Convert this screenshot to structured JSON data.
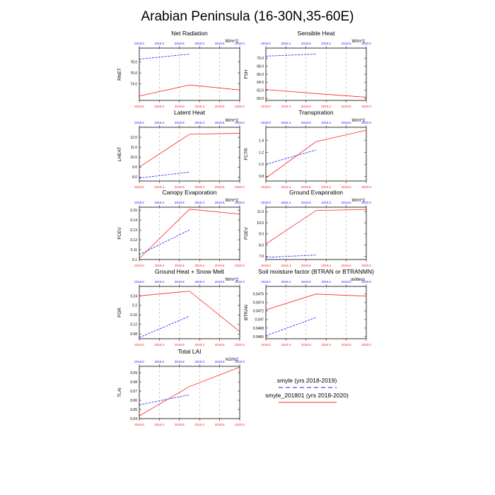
{
  "title": "Arabian Peninsula (16-30N,35-60E)",
  "legend": [
    {
      "label": "smyle (yrs 2018-2019)",
      "color": "#1a1aff",
      "dash": "6,4"
    },
    {
      "label": "smyle_201801 (yrs 2018-2020)",
      "color": "#ff2020",
      "dash": ""
    }
  ],
  "chart_data": [
    {
      "type": "line",
      "title": "Net Radiation",
      "units": "W/m^2",
      "ylabel": "RNET",
      "xlim": [
        2018.0,
        2020.0
      ],
      "ylim": [
        71,
        80.5
      ],
      "yticks": [
        74.0,
        76.0,
        78.0
      ],
      "xticks": [
        "2018.0",
        "2018.4",
        "2018.8",
        "2019.2",
        "2019.6",
        "2020.0"
      ],
      "series": [
        {
          "x": [
            2018.0,
            2019.0
          ],
          "y": [
            78.5,
            79.4
          ]
        },
        {
          "x": [
            2018.0,
            2019.0,
            2020.0
          ],
          "y": [
            71.8,
            73.8,
            72.9
          ]
        }
      ]
    },
    {
      "type": "line",
      "title": "Sensible Heat",
      "units": "W/m^2",
      "ylabel": "FSH",
      "xlim": [
        2018.0,
        2020.0
      ],
      "ylim": [
        59.5,
        72.5
      ],
      "yticks": [
        60.0,
        62.0,
        64.0,
        66.0,
        68.0,
        70.0
      ],
      "xticks": [
        "2018.0",
        "2018.4",
        "2018.8",
        "2019.2",
        "2019.6",
        "2020.0"
      ],
      "series": [
        {
          "x": [
            2018.0,
            2019.0
          ],
          "y": [
            70.5,
            71.0
          ]
        },
        {
          "x": [
            2018.0,
            2019.0,
            2020.0
          ],
          "y": [
            62.2,
            61.2,
            60.3
          ]
        }
      ]
    },
    {
      "type": "line",
      "title": "Latent Heat",
      "units": "W/m^2",
      "ylabel": "LHEAT",
      "xlim": [
        2018.0,
        2020.0
      ],
      "ylim": [
        7.6,
        13.0
      ],
      "yticks": [
        8.0,
        9.0,
        10.0,
        11.0,
        12.0
      ],
      "xticks": [
        "2018.0",
        "2018.4",
        "2018.8",
        "2019.2",
        "2019.6",
        "2020.0"
      ],
      "series": [
        {
          "x": [
            2018.0,
            2019.0
          ],
          "y": [
            7.9,
            8.5
          ]
        },
        {
          "x": [
            2018.0,
            2019.0,
            2020.0
          ],
          "y": [
            9.0,
            12.3,
            12.4
          ]
        }
      ]
    },
    {
      "type": "line",
      "title": "Transpiration",
      "units": "W/m^2",
      "ylabel": "FCTR",
      "xlim": [
        2018.0,
        2020.0
      ],
      "ylim": [
        0.72,
        1.62
      ],
      "yticks": [
        0.8,
        1.0,
        1.2,
        1.4
      ],
      "xticks": [
        "2018.0",
        "2018.4",
        "2018.8",
        "2019.2",
        "2019.6",
        "2020.0"
      ],
      "series": [
        {
          "x": [
            2018.0,
            2019.0
          ],
          "y": [
            1.0,
            1.24
          ]
        },
        {
          "x": [
            2018.0,
            2019.0,
            2020.0
          ],
          "y": [
            0.77,
            1.38,
            1.57
          ]
        }
      ]
    },
    {
      "type": "line",
      "title": "Canopy Evaporation",
      "units": "W/m^2",
      "ylabel": "FCEV",
      "xlim": [
        2018.0,
        2020.0
      ],
      "ylim": [
        0.1,
        0.153
      ],
      "yticks": [
        0.1,
        0.11,
        0.12,
        0.13,
        0.14,
        0.15
      ],
      "xticks": [
        "2018.0",
        "2018.4",
        "2018.8",
        "2019.2",
        "2019.6",
        "2020.0"
      ],
      "series": [
        {
          "x": [
            2018.0,
            2019.0
          ],
          "y": [
            0.105,
            0.13
          ]
        },
        {
          "x": [
            2018.0,
            2019.0,
            2020.0
          ],
          "y": [
            0.101,
            0.151,
            0.146
          ]
        }
      ]
    },
    {
      "type": "line",
      "title": "Ground Evaporation",
      "units": "W/m^2",
      "ylabel": "FGEV",
      "xlim": [
        2018.0,
        2020.0
      ],
      "ylim": [
        6.7,
        11.4
      ],
      "yticks": [
        7.0,
        8.0,
        9.0,
        10.0,
        11.0
      ],
      "xticks": [
        "2018.0",
        "2018.4",
        "2018.8",
        "2019.2",
        "2019.6",
        "2020.0"
      ],
      "series": [
        {
          "x": [
            2018.0,
            2019.0
          ],
          "y": [
            6.9,
            7.1
          ]
        },
        {
          "x": [
            2018.0,
            2019.0,
            2020.0
          ],
          "y": [
            8.1,
            11.1,
            11.2
          ]
        }
      ]
    },
    {
      "type": "line",
      "title": "Ground Heat + Snow Melt",
      "units": "W/m^2",
      "ylabel": "FGR",
      "xlim": [
        2018.0,
        2020.0
      ],
      "ylim": [
        0.06,
        0.28
      ],
      "yticks": [
        0.08,
        0.12,
        0.16,
        0.2,
        0.24
      ],
      "xticks": [
        "2018.0",
        "2018.4",
        "2018.8",
        "2019.2",
        "2019.6",
        "2020.0"
      ],
      "series": [
        {
          "x": [
            2018.0,
            2019.0
          ],
          "y": [
            0.065,
            0.155
          ]
        },
        {
          "x": [
            2018.0,
            2019.0,
            2020.0
          ],
          "y": [
            0.24,
            0.26,
            0.09
          ]
        }
      ]
    },
    {
      "type": "line",
      "title": "Soil moisture factor (BTRAN or BTRANMN)",
      "units": "unitless",
      "ylabel": "BTRAN",
      "xlim": [
        2018.0,
        2020.0
      ],
      "ylim": [
        0.04655,
        0.04778
      ],
      "yticks": [
        0.0466,
        0.0468,
        0.047,
        0.0472,
        0.0474,
        0.0476
      ],
      "xticks": [
        "2018.0",
        "2018.4",
        "2018.8",
        "2019.2",
        "2019.6",
        "2020.0"
      ],
      "series": [
        {
          "x": [
            2018.0,
            2019.0
          ],
          "y": [
            0.04662,
            0.04705
          ]
        },
        {
          "x": [
            2018.0,
            2019.0,
            2020.0
          ],
          "y": [
            0.04723,
            0.0476,
            0.04755
          ]
        }
      ]
    },
    {
      "type": "line",
      "title": "Total LAI",
      "units": "m2/m2",
      "ylabel": "TLAI",
      "xlim": [
        2018.0,
        2020.0
      ],
      "ylim": [
        0.04,
        0.097
      ],
      "yticks": [
        0.04,
        0.05,
        0.06,
        0.07,
        0.08,
        0.09
      ],
      "xticks": [
        "2018.0",
        "2018.4",
        "2018.8",
        "2019.2",
        "2019.6",
        "2020.0"
      ],
      "series": [
        {
          "x": [
            2018.0,
            2019.0
          ],
          "y": [
            0.055,
            0.066
          ]
        },
        {
          "x": [
            2018.0,
            2019.0,
            2020.0
          ],
          "y": [
            0.043,
            0.075,
            0.096
          ]
        }
      ]
    }
  ]
}
